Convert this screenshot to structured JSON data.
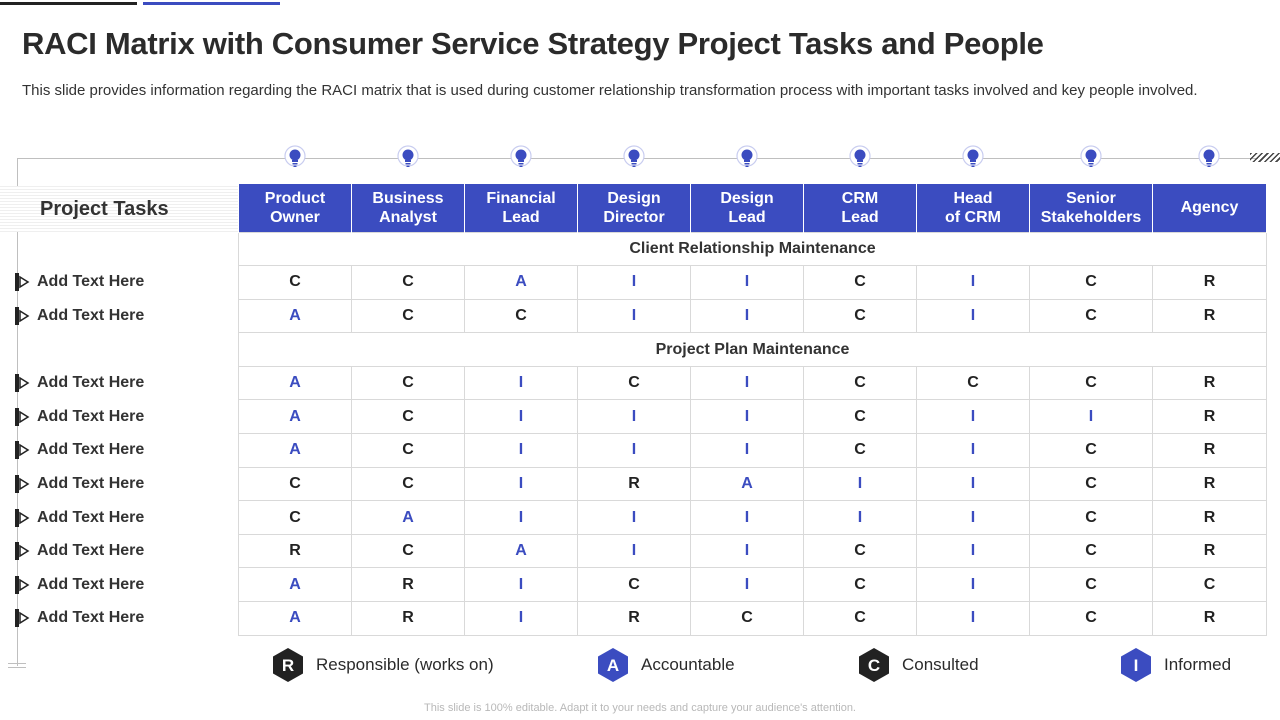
{
  "title": "RACI Matrix with Consumer Service Strategy Project Tasks and People",
  "subtitle": "This slide provides information regarding the RACI matrix that is used during customer relationship transformation process with important tasks involved and key people involved.",
  "tasks_header": "Project Tasks",
  "columns": [
    [
      "Product",
      "Owner"
    ],
    [
      "Business",
      "Analyst"
    ],
    [
      "Financial",
      "Lead"
    ],
    [
      "Design",
      "Director"
    ],
    [
      "Design",
      "Lead"
    ],
    [
      "CRM",
      "Lead"
    ],
    [
      "Head",
      "of CRM"
    ],
    [
      "Senior",
      "Stakeholders"
    ],
    [
      "Agency"
    ]
  ],
  "sections": [
    {
      "title": "Client Relationship Maintenance",
      "rows": [
        {
          "task": "Add Text Here",
          "values": [
            "C",
            "C",
            "A",
            "I",
            "I",
            "C",
            "I",
            "C",
            "R"
          ]
        },
        {
          "task": "Add Text Here",
          "values": [
            "A",
            "C",
            "C",
            "I",
            "I",
            "C",
            "I",
            "C",
            "R"
          ]
        }
      ]
    },
    {
      "title": "Project Plan Maintenance",
      "rows": [
        {
          "task": "Add Text Here",
          "values": [
            "A",
            "C",
            "I",
            "C",
            "I",
            "C",
            "C",
            "C",
            "R"
          ]
        },
        {
          "task": "Add Text Here",
          "values": [
            "A",
            "C",
            "I",
            "I",
            "I",
            "C",
            "I",
            "I",
            "R"
          ]
        },
        {
          "task": "Add Text Here",
          "values": [
            "A",
            "C",
            "I",
            "I",
            "I",
            "C",
            "I",
            "C",
            "R"
          ]
        },
        {
          "task": "Add Text Here",
          "values": [
            "C",
            "C",
            "I",
            "R",
            "A",
            "I",
            "I",
            "C",
            "R"
          ]
        },
        {
          "task": "Add Text Here",
          "values": [
            "C",
            "A",
            "I",
            "I",
            "I",
            "I",
            "I",
            "C",
            "R"
          ]
        },
        {
          "task": "Add Text Here",
          "values": [
            "R",
            "C",
            "A",
            "I",
            "I",
            "C",
            "I",
            "C",
            "R"
          ]
        },
        {
          "task": "Add Text Here",
          "values": [
            "A",
            "R",
            "I",
            "C",
            "I",
            "C",
            "I",
            "C",
            "C"
          ]
        },
        {
          "task": "Add Text Here",
          "values": [
            "A",
            "R",
            "I",
            "R",
            "C",
            "C",
            "I",
            "C",
            "R"
          ]
        }
      ]
    }
  ],
  "legend": [
    {
      "letter": "R",
      "label": "Responsible (works on)",
      "color": "#222222"
    },
    {
      "letter": "A",
      "label": "Accountable",
      "color": "#3b4cc0"
    },
    {
      "letter": "C",
      "label": "Consulted",
      "color": "#222222"
    },
    {
      "letter": "I",
      "label": "Informed",
      "color": "#3b4cc0"
    }
  ],
  "footer": "This slide is 100% editable. Adapt it to your needs and capture your audience's attention.",
  "colors": {
    "accent": "#3b4cc0",
    "dark": "#222222",
    "grid": "#d9d9d9"
  }
}
